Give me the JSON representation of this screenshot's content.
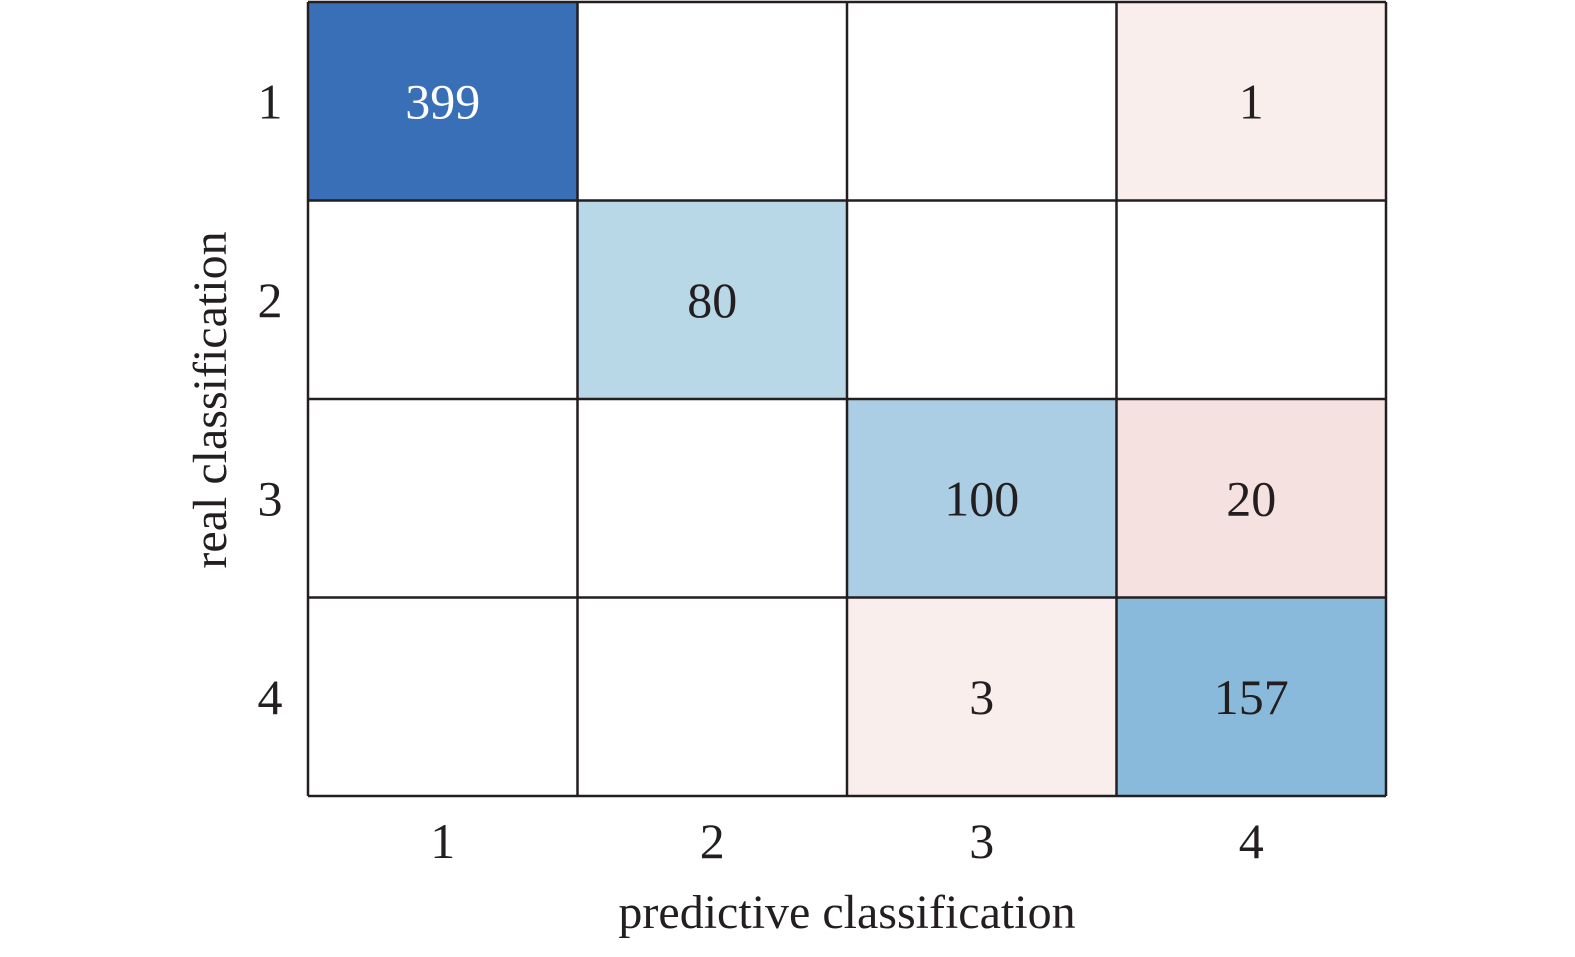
{
  "chart_data": {
    "type": "heatmap",
    "title": "",
    "xlabel": "predictive classification",
    "ylabel": "real classification",
    "x_categories": [
      "1",
      "2",
      "3",
      "4"
    ],
    "y_categories": [
      "1",
      "2",
      "3",
      "4"
    ],
    "values": [
      [
        399,
        null,
        null,
        1
      ],
      [
        null,
        80,
        null,
        null
      ],
      [
        null,
        null,
        100,
        20
      ],
      [
        null,
        null,
        3,
        157
      ]
    ],
    "colors": {
      "diagonal_high": "#386fb7",
      "diagonal_mid": "#8abadb",
      "diagonal_low": "#b8d7e7",
      "off_diagonal_low": "#faeeec",
      "off_diagonal_mid": "#f6e1e1",
      "empty": "#ffffff",
      "grid": "#231f20",
      "text_dark": "#231f20",
      "text_light": "#ffffff"
    },
    "cell_colors": [
      [
        "#386fb7",
        "#ffffff",
        "#ffffff",
        "#faeeec"
      ],
      [
        "#ffffff",
        "#b8d7e7",
        "#ffffff",
        "#ffffff"
      ],
      [
        "#ffffff",
        "#ffffff",
        "#abcee5",
        "#f6e1e1"
      ],
      [
        "#ffffff",
        "#ffffff",
        "#faeeec",
        "#8abadb"
      ]
    ],
    "grid": true,
    "legend": "none"
  }
}
